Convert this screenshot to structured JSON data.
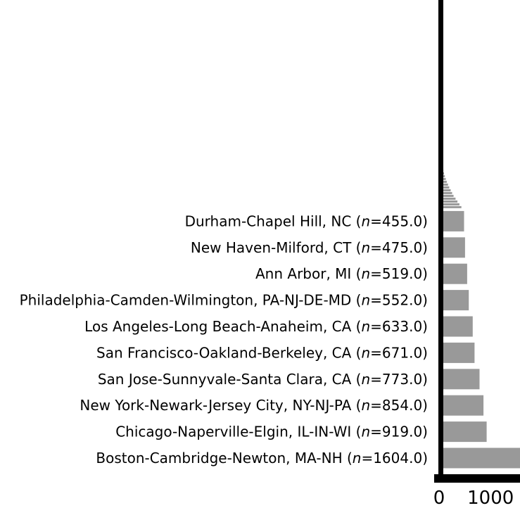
{
  "chart_data": {
    "type": "bar",
    "orientation": "horizontal",
    "title": "",
    "xlabel": "",
    "ylabel": "",
    "xlim": [
      0,
      1604
    ],
    "xticks": [
      "0",
      "1000"
    ],
    "n_prefix": "n",
    "categories": [
      "Boston-Cambridge-Newton, MA-NH",
      "Chicago-Naperville-Elgin, IL-IN-WI",
      "New York-Newark-Jersey City, NY-NJ-PA",
      "San Jose-Sunnyvale-Santa Clara, CA",
      "San Francisco-Oakland-Berkeley, CA",
      "Los Angeles-Long Beach-Anaheim, CA",
      "Philadelphia-Camden-Wilmington, PA-NJ-DE-MD",
      "Ann Arbor, MI",
      "New Haven-Milford, CT",
      "Durham-Chapel Hill, NC"
    ],
    "values": [
      1604,
      919,
      854,
      773,
      671,
      633,
      552,
      519,
      475,
      455
    ],
    "value_labels": [
      "1604.0",
      "919.0",
      "854.0",
      "773.0",
      "671.0",
      "633.0",
      "552.0",
      "519.0",
      "475.0",
      "455.0"
    ],
    "unlabeled_tail_values": [
      400,
      360,
      320,
      280,
      240,
      210,
      180,
      150,
      125,
      100,
      80,
      60,
      45,
      30,
      18,
      10
    ],
    "bar_color": "#999999",
    "axis_color": "#000000"
  }
}
